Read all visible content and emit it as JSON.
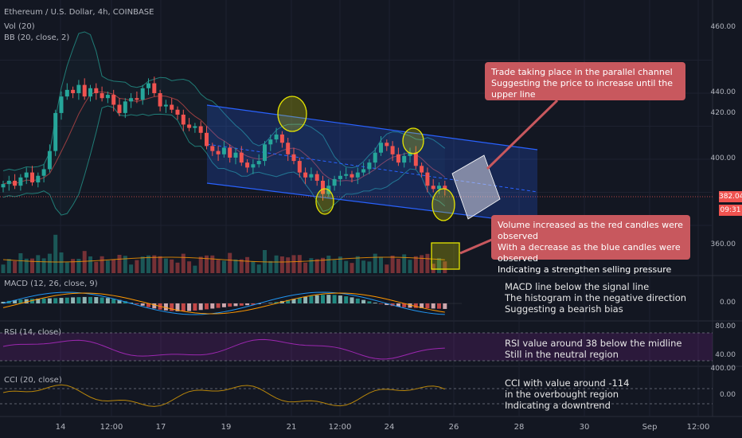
{
  "header": {
    "symbol_title": "Ethereum / U.S. Dollar, 4h, COINBASE",
    "vol_label": "Vol (20)",
    "bb_label": "BB (20, close, 2)"
  },
  "price_axis": {
    "ticks": [
      "460.00",
      "440.00",
      "420.00",
      "400.00",
      "360.00"
    ],
    "current_price": "382.04",
    "countdown": "09:31"
  },
  "time_axis": {
    "ticks": [
      "14",
      "12:00",
      "17",
      "19",
      "21",
      "12:00",
      "24",
      "26",
      "28",
      "30",
      "Sep",
      "12:00"
    ]
  },
  "macd": {
    "label": "MACD (12, 26, close, 9)",
    "tick": "0.00",
    "note": "MACD line below the signal line\nThe histogram in the negative direction\nSuggesting a bearish bias"
  },
  "rsi": {
    "label": "RSI (14, close)",
    "ticks": [
      "80.00",
      "40.00"
    ],
    "note": "RSI value around 38 below the midline\nStill in the neutral region"
  },
  "cci": {
    "label": "CCI (20, close)",
    "ticks": [
      "400.00",
      "0.00"
    ],
    "note": "CCI with value around -114\nin the overbought region\nIndicating a downtrend"
  },
  "annotations": {
    "channel_callout": "Trade taking place in the parallel channel\nSuggesting the price to increase until the upper line",
    "volume_callout": "Volume increased as the red candles were observed\nWith a decrease as the blue candles were observed\nIndicating a strengthen selling pressure"
  },
  "colors": {
    "background": "#131722",
    "bull": "#26a69a",
    "bear": "#ef5350",
    "channel_fill": "#2962ff",
    "callout": "#c8585e",
    "highlight_circle": "#e6e600",
    "rsi_line": "#9c27b0",
    "cci_line": "#b8860b"
  },
  "chart_data": {
    "type": "candlestick",
    "title": "Ethereum / U.S. Dollar, 4h, COINBASE",
    "ylim": [
      350,
      470
    ],
    "current_price": 382.04,
    "close_path": [
      385,
      387,
      384,
      389,
      392,
      386,
      390,
      394,
      405,
      428,
      438,
      442,
      440,
      445,
      438,
      443,
      440,
      437,
      439,
      433,
      428,
      435,
      437,
      436,
      443,
      446,
      440,
      432,
      433,
      430,
      427,
      421,
      419,
      420,
      416,
      408,
      405,
      403,
      407,
      401,
      404,
      398,
      395,
      397,
      399,
      409,
      412,
      415,
      410,
      403,
      399,
      392,
      389,
      391,
      387,
      379,
      384,
      388,
      390,
      391,
      389,
      392,
      394,
      398,
      404,
      410,
      408,
      403,
      398,
      402,
      404,
      396,
      392,
      384,
      382,
      384,
      382
    ]
  }
}
